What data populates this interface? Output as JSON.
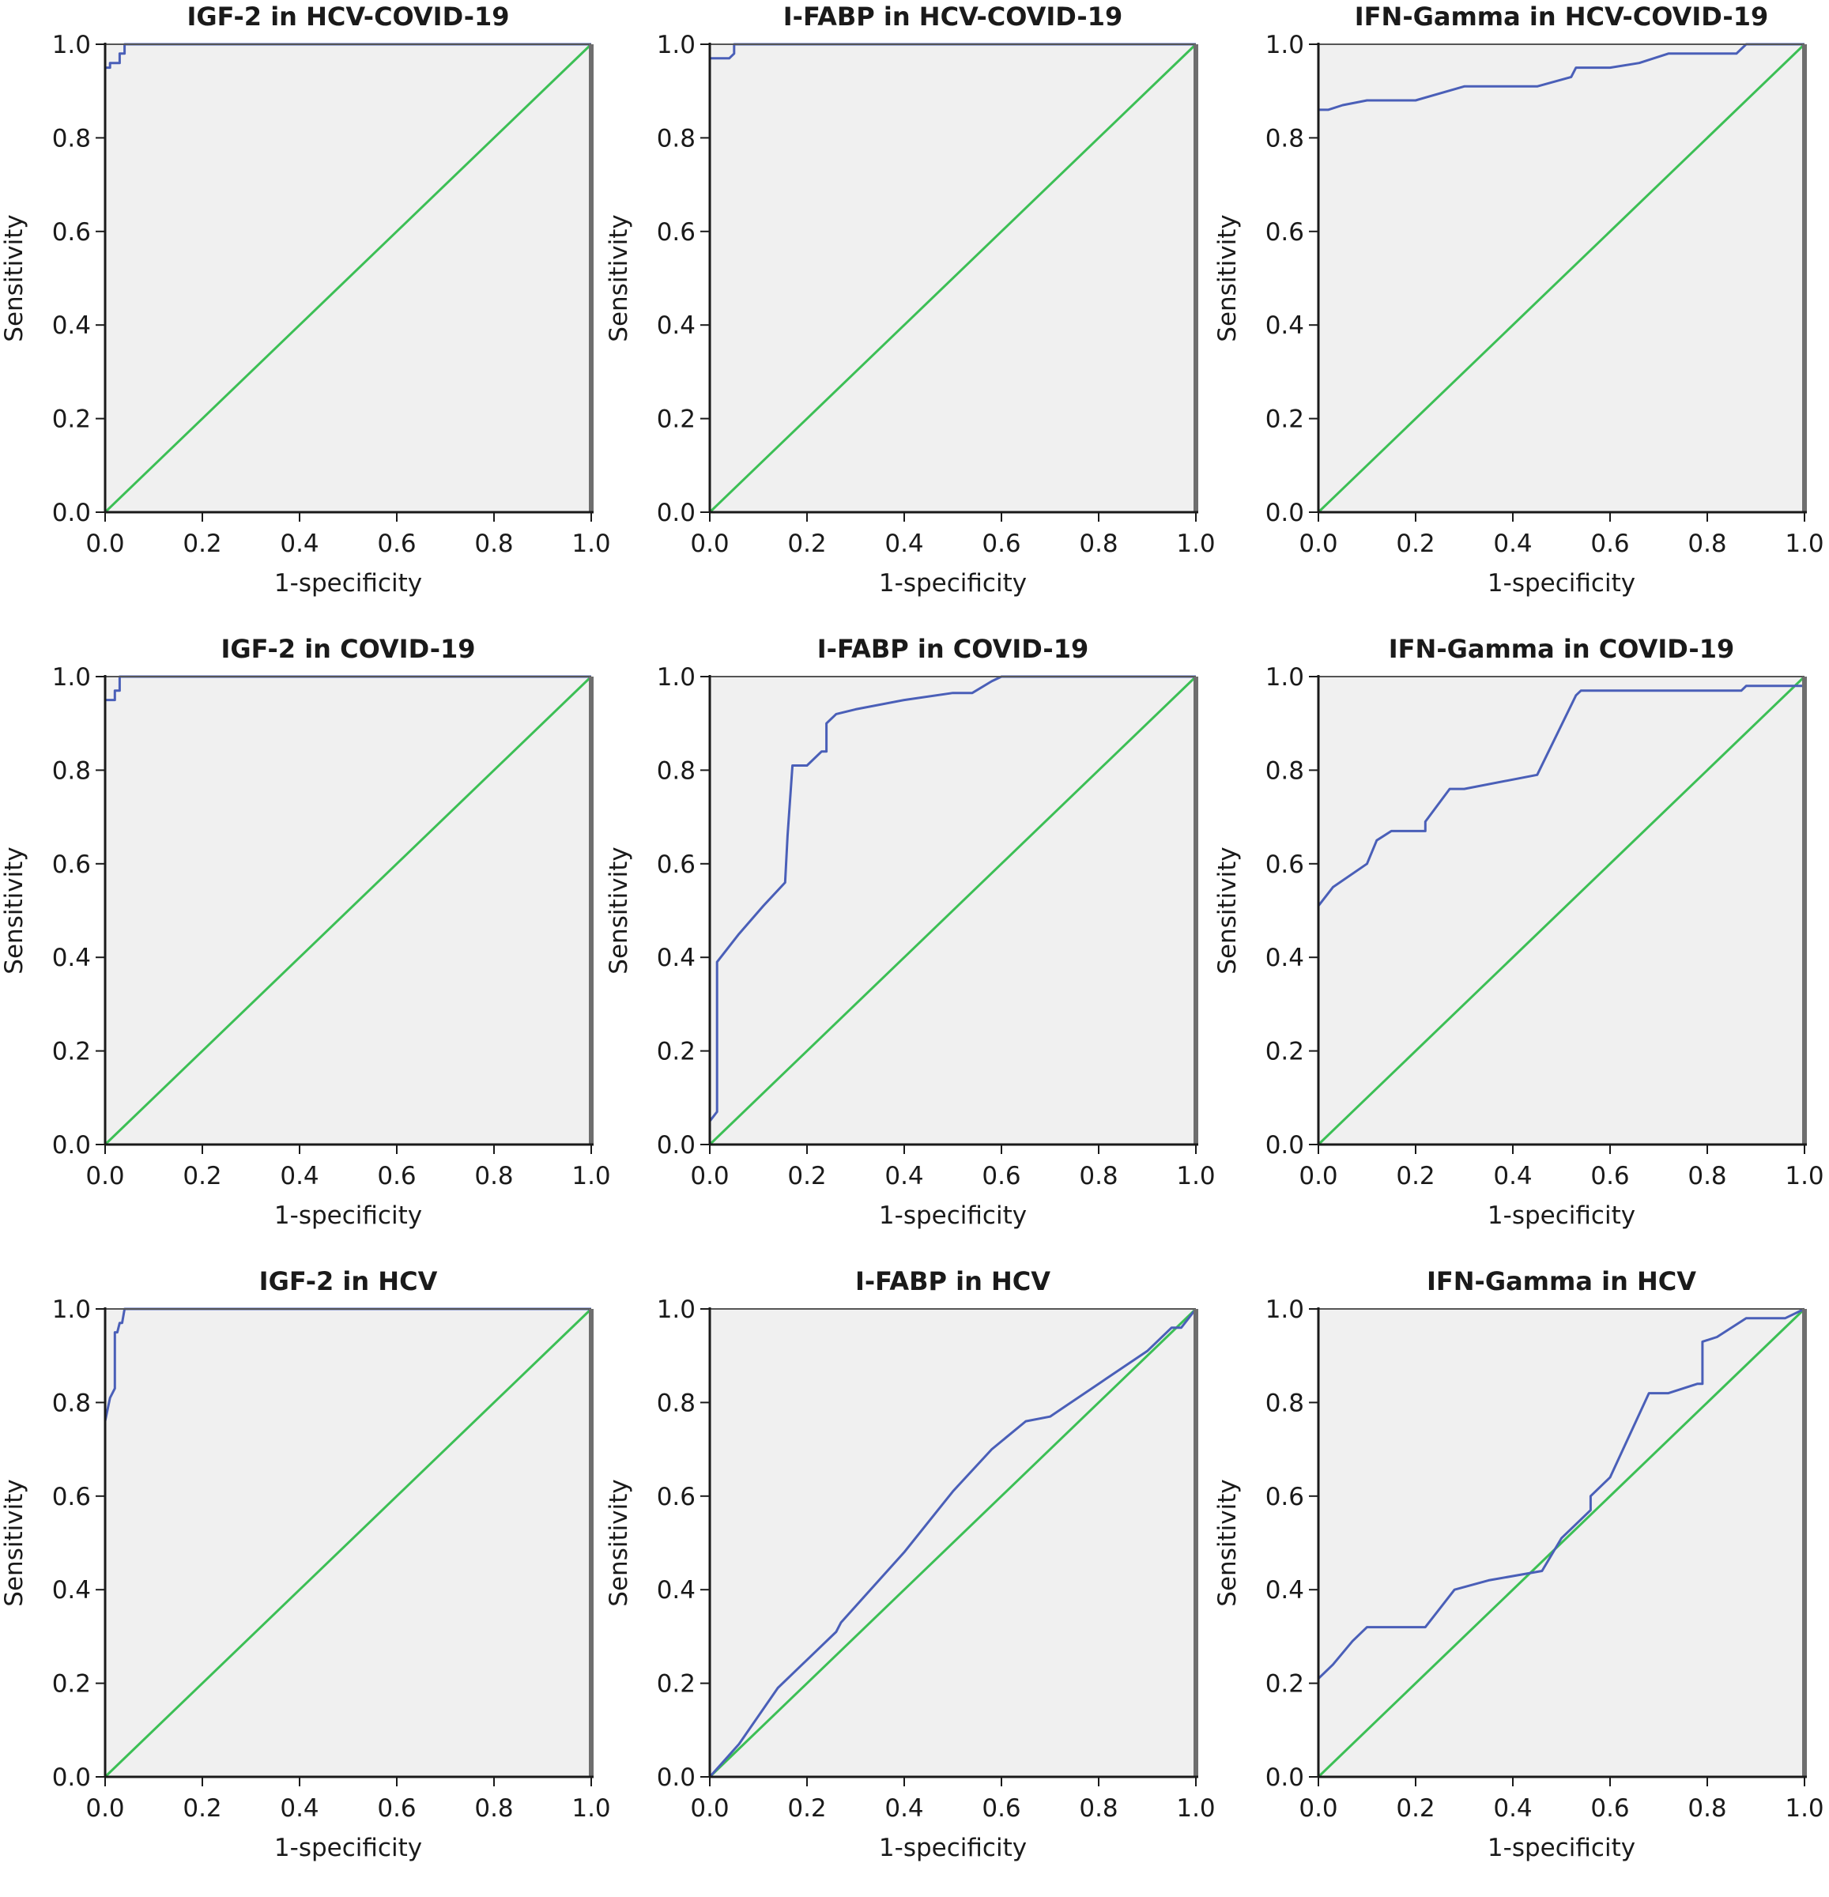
{
  "chart_data": [
    {
      "type": "line",
      "title": "IGF-2 in HCV-COVID-19",
      "xlabel": "1-specificity",
      "ylabel": "Sensitivity",
      "xlim": [
        0,
        1
      ],
      "ylim": [
        0,
        1
      ],
      "xticks": [
        "0.0",
        "0.2",
        "0.4",
        "0.6",
        "0.8",
        "1.0"
      ],
      "yticks": [
        "0.0",
        "0.2",
        "0.4",
        "0.6",
        "0.8",
        "1.0"
      ],
      "series": [
        {
          "name": "ROC curve",
          "color": "#4a5fb8",
          "x": [
            0,
            0,
            0.01,
            0.01,
            0.03,
            0.03,
            0.04,
            0.04,
            1
          ],
          "y": [
            0,
            0.95,
            0.95,
            0.96,
            0.96,
            0.98,
            0.98,
            1,
            1
          ]
        },
        {
          "name": "Reference line",
          "color": "#3cbf55",
          "x": [
            0,
            1
          ],
          "y": [
            0,
            1
          ]
        }
      ]
    },
    {
      "type": "line",
      "title": "I-FABP in HCV-COVID-19",
      "xlabel": "1-specificity",
      "ylabel": "Sensitivity",
      "xlim": [
        0,
        1
      ],
      "ylim": [
        0,
        1
      ],
      "xticks": [
        "0.0",
        "0.2",
        "0.4",
        "0.6",
        "0.8",
        "1.0"
      ],
      "yticks": [
        "0.0",
        "0.2",
        "0.4",
        "0.6",
        "0.8",
        "1.0"
      ],
      "series": [
        {
          "name": "ROC curve",
          "color": "#4a5fb8",
          "x": [
            0,
            0,
            0.04,
            0.05,
            0.05,
            1
          ],
          "y": [
            0,
            0.97,
            0.97,
            0.98,
            1,
            1
          ]
        },
        {
          "name": "Reference line",
          "color": "#3cbf55",
          "x": [
            0,
            1
          ],
          "y": [
            0,
            1
          ]
        }
      ]
    },
    {
      "type": "line",
      "title": "IFN-Gamma in HCV-COVID-19",
      "xlabel": "1-specificity",
      "ylabel": "Sensitivity",
      "xlim": [
        0,
        1
      ],
      "ylim": [
        0,
        1
      ],
      "xticks": [
        "0.0",
        "0.2",
        "0.4",
        "0.6",
        "0.8",
        "1.0"
      ],
      "yticks": [
        "0.0",
        "0.2",
        "0.4",
        "0.6",
        "0.8",
        "1.0"
      ],
      "series": [
        {
          "name": "ROC curve",
          "color": "#4a5fb8",
          "x": [
            0,
            0,
            0.02,
            0.05,
            0.1,
            0.2,
            0.3,
            0.45,
            0.52,
            0.53,
            0.6,
            0.66,
            0.72,
            0.86,
            0.88,
            1
          ],
          "y": [
            0,
            0.86,
            0.86,
            0.87,
            0.88,
            0.88,
            0.91,
            0.91,
            0.93,
            0.95,
            0.95,
            0.96,
            0.98,
            0.98,
            1,
            1
          ]
        },
        {
          "name": "Reference line",
          "color": "#3cbf55",
          "x": [
            0,
            1
          ],
          "y": [
            0,
            1
          ]
        }
      ]
    },
    {
      "type": "line",
      "title": "IGF-2 in COVID-19",
      "xlabel": "1-specificity",
      "ylabel": "Sensitivity",
      "xlim": [
        0,
        1
      ],
      "ylim": [
        0,
        1
      ],
      "xticks": [
        "0.0",
        "0.2",
        "0.4",
        "0.6",
        "0.8",
        "1.0"
      ],
      "yticks": [
        "0.0",
        "0.2",
        "0.4",
        "0.6",
        "0.8",
        "1.0"
      ],
      "series": [
        {
          "name": "ROC curve",
          "color": "#4a5fb8",
          "x": [
            0,
            0,
            0.02,
            0.02,
            0.03,
            0.03,
            1
          ],
          "y": [
            0,
            0.95,
            0.95,
            0.97,
            0.97,
            1,
            1
          ]
        },
        {
          "name": "Reference line",
          "color": "#3cbf55",
          "x": [
            0,
            1
          ],
          "y": [
            0,
            1
          ]
        }
      ]
    },
    {
      "type": "line",
      "title": "I-FABP in COVID-19",
      "xlabel": "1-specificity",
      "ylabel": "Sensitivity",
      "xlim": [
        0,
        1
      ],
      "ylim": [
        0,
        1
      ],
      "xticks": [
        "0.0",
        "0.2",
        "0.4",
        "0.6",
        "0.8",
        "1.0"
      ],
      "yticks": [
        "0.0",
        "0.2",
        "0.4",
        "0.6",
        "0.8",
        "1.0"
      ],
      "series": [
        {
          "name": "ROC curve",
          "color": "#4a5fb8",
          "x": [
            0,
            0,
            0.015,
            0.015,
            0.06,
            0.11,
            0.155,
            0.16,
            0.17,
            0.2,
            0.23,
            0.24,
            0.24,
            0.26,
            0.3,
            0.4,
            0.5,
            0.54,
            0.58,
            0.6,
            1
          ],
          "y": [
            0,
            0.05,
            0.07,
            0.39,
            0.45,
            0.51,
            0.56,
            0.66,
            0.81,
            0.81,
            0.84,
            0.84,
            0.9,
            0.92,
            0.93,
            0.95,
            0.965,
            0.965,
            0.99,
            1,
            1
          ]
        },
        {
          "name": "Reference line",
          "color": "#3cbf55",
          "x": [
            0,
            1
          ],
          "y": [
            0,
            1
          ]
        }
      ]
    },
    {
      "type": "line",
      "title": "IFN-Gamma in COVID-19",
      "xlabel": "1-specificity",
      "ylabel": "Sensitivity",
      "xlim": [
        0,
        1
      ],
      "ylim": [
        0,
        1
      ],
      "xticks": [
        "0.0",
        "0.2",
        "0.4",
        "0.6",
        "0.8",
        "1.0"
      ],
      "yticks": [
        "0.0",
        "0.2",
        "0.4",
        "0.6",
        "0.8",
        "1.0"
      ],
      "series": [
        {
          "name": "ROC curve",
          "color": "#4a5fb8",
          "x": [
            0,
            0,
            0.03,
            0.1,
            0.12,
            0.15,
            0.22,
            0.22,
            0.27,
            0.3,
            0.45,
            0.53,
            0.54,
            0.87,
            0.88,
            1
          ],
          "y": [
            0,
            0.51,
            0.55,
            0.6,
            0.65,
            0.67,
            0.67,
            0.69,
            0.76,
            0.76,
            0.79,
            0.96,
            0.97,
            0.97,
            0.98,
            0.98
          ]
        },
        {
          "name": "Reference line",
          "color": "#3cbf55",
          "x": [
            0,
            1
          ],
          "y": [
            0,
            1
          ]
        }
      ]
    },
    {
      "type": "line",
      "title": "IGF-2 in HCV",
      "xlabel": "1-specificity",
      "ylabel": "Sensitivity",
      "xlim": [
        0,
        1
      ],
      "ylim": [
        0,
        1
      ],
      "xticks": [
        "0.0",
        "0.2",
        "0.4",
        "0.6",
        "0.8",
        "1.0"
      ],
      "yticks": [
        "0.0",
        "0.2",
        "0.4",
        "0.6",
        "0.8",
        "1.0"
      ],
      "series": [
        {
          "name": "ROC curve",
          "color": "#4a5fb8",
          "x": [
            0,
            0,
            0.01,
            0.02,
            0.02,
            0.025,
            0.03,
            0.035,
            0.04,
            1
          ],
          "y": [
            0,
            0.76,
            0.81,
            0.83,
            0.95,
            0.95,
            0.97,
            0.97,
            1,
            1
          ]
        },
        {
          "name": "Reference line",
          "color": "#3cbf55",
          "x": [
            0,
            1
          ],
          "y": [
            0,
            1
          ]
        }
      ]
    },
    {
      "type": "line",
      "title": "I-FABP in HCV",
      "xlabel": "1-specificity",
      "ylabel": "Sensitivity",
      "xlim": [
        0,
        1
      ],
      "ylim": [
        0,
        1
      ],
      "xticks": [
        "0.0",
        "0.2",
        "0.4",
        "0.6",
        "0.8",
        "1.0"
      ],
      "yticks": [
        "0.0",
        "0.2",
        "0.4",
        "0.6",
        "0.8",
        "1.0"
      ],
      "series": [
        {
          "name": "ROC curve",
          "color": "#4a5fb8",
          "x": [
            0,
            0.06,
            0.14,
            0.26,
            0.27,
            0.4,
            0.5,
            0.58,
            0.65,
            0.7,
            0.8,
            0.9,
            0.95,
            0.97,
            1
          ],
          "y": [
            0,
            0.07,
            0.19,
            0.31,
            0.33,
            0.48,
            0.61,
            0.7,
            0.76,
            0.77,
            0.84,
            0.91,
            0.96,
            0.96,
            1
          ]
        },
        {
          "name": "Reference line",
          "color": "#3cbf55",
          "x": [
            0,
            1
          ],
          "y": [
            0,
            1
          ]
        }
      ]
    },
    {
      "type": "line",
      "title": "IFN-Gamma in HCV",
      "xlabel": "1-specificity",
      "ylabel": "Sensitivity",
      "xlim": [
        0,
        1
      ],
      "ylim": [
        0,
        1
      ],
      "xticks": [
        "0.0",
        "0.2",
        "0.4",
        "0.6",
        "0.8",
        "1.0"
      ],
      "yticks": [
        "0.0",
        "0.2",
        "0.4",
        "0.6",
        "0.8",
        "1.0"
      ],
      "series": [
        {
          "name": "ROC curve",
          "color": "#4a5fb8",
          "x": [
            0,
            0,
            0.03,
            0.07,
            0.1,
            0.22,
            0.28,
            0.35,
            0.46,
            0.5,
            0.56,
            0.56,
            0.6,
            0.68,
            0.72,
            0.78,
            0.79,
            0.79,
            0.82,
            0.88,
            0.96,
            1
          ],
          "y": [
            0,
            0.21,
            0.24,
            0.29,
            0.32,
            0.32,
            0.4,
            0.42,
            0.44,
            0.51,
            0.57,
            0.6,
            0.64,
            0.82,
            0.82,
            0.84,
            0.84,
            0.93,
            0.94,
            0.98,
            0.98,
            1
          ]
        },
        {
          "name": "Reference line",
          "color": "#3cbf55",
          "x": [
            0,
            1
          ],
          "y": [
            0,
            1
          ]
        }
      ]
    }
  ]
}
